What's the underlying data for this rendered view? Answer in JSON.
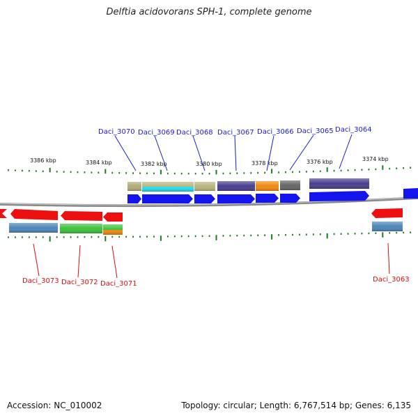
{
  "title": "Delftia acidovorans SPH-1, complete genome",
  "footer": {
    "accession": "Accession: NC_010002",
    "summary": "Topology: circular; Length: 6,767,514 bp; Genes: 6,135"
  },
  "colors": {
    "forward_cds": "#1414ee",
    "reverse_cds": "#ee1010",
    "tick": "#1d7a1d",
    "backbone": "#8a8a8a",
    "top_label": "#1a1ad6",
    "bottom_label": "#d60e0e"
  },
  "kbp_labels": [
    "3386 kbp",
    "3384 kbp",
    "3382 kbp",
    "3380 kbp",
    "3378 kbp",
    "3376 kbp",
    "3374 kbp"
  ],
  "top_genes": [
    {
      "name": "Daci_3070",
      "cog_color": "#b0ab7a"
    },
    {
      "name": "Daci_3069",
      "cog_color": "#b8b47c"
    },
    {
      "name": "Daci_3068",
      "cog_color": "#b8b47c"
    },
    {
      "name": "Daci_3067",
      "cog_color": "#4a3f8e"
    },
    {
      "name": "Daci_3066",
      "cog_color": "#f08a10"
    },
    {
      "name": "Daci_3065",
      "cog_color": "#666666"
    },
    {
      "name": "Daci_3064",
      "cog_color": "#4a3f8e"
    }
  ],
  "bottom_genes": [
    {
      "name": "Daci_3073",
      "cog_color": "#4d86b8"
    },
    {
      "name": "Daci_3072",
      "cog_color": "#3cc23c"
    },
    {
      "name": "Daci_3071",
      "cog_color": "#3cc23c"
    },
    {
      "name": "Daci_3063",
      "cog_color": "#4d86b8"
    }
  ]
}
